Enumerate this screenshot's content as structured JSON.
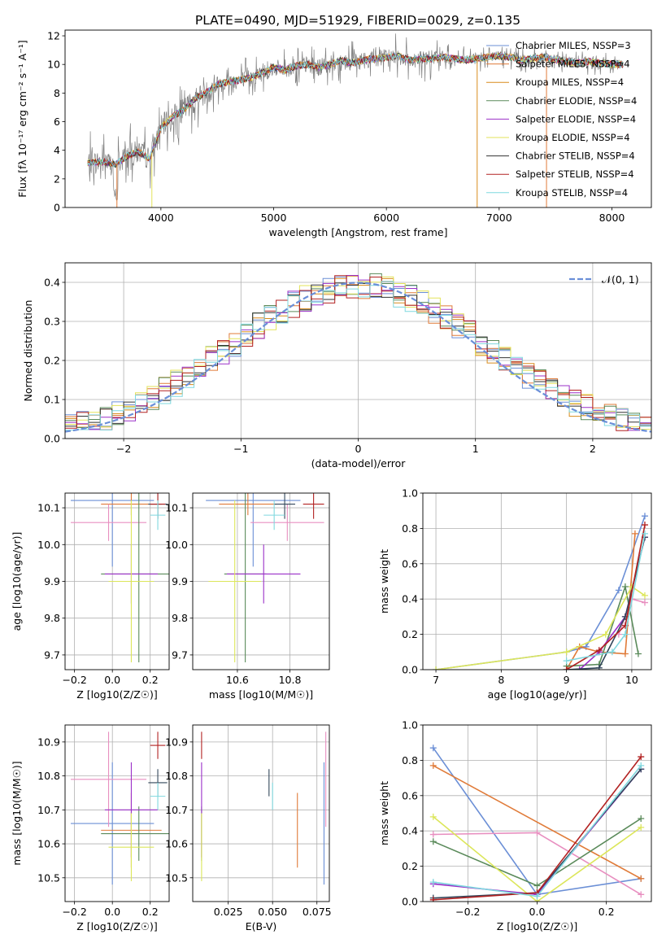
{
  "figure": {
    "title": "PLATE=0490, MJD=51929, FIBERID=0029, z=0.135"
  },
  "chart_data": [
    {
      "id": "spectrum",
      "type": "line",
      "xlabel": "wavelength [Angstrom, rest frame]",
      "ylabel": "Flux [fλ 10⁻¹⁷ erg cm⁻² s⁻¹ A⁻¹]",
      "xlim": [
        3150,
        8350
      ],
      "ylim": [
        0,
        12.4
      ],
      "xticks": [
        4000,
        5000,
        6000,
        7000,
        8000
      ],
      "yticks": [
        0,
        2,
        4,
        6,
        8,
        10,
        12
      ],
      "grid": false,
      "legend_position": "top-right",
      "series": [
        {
          "name": "Chabrier MILES, NSSP=3",
          "color": "#6b8fd6"
        },
        {
          "name": "Salpeter MILES, NSSP=4",
          "color": "#e07b39"
        },
        {
          "name": "Kroupa MILES, NSSP=4",
          "color": "#d88c1d"
        },
        {
          "name": "Chabrier ELODIE, NSSP=4",
          "color": "#5a8a5a"
        },
        {
          "name": "Salpeter ELODIE, NSSP=4",
          "color": "#9b30c8"
        },
        {
          "name": "Kroupa ELODIE, NSSP=4",
          "color": "#e3e35a"
        },
        {
          "name": "Chabrier STELIB, NSSP=4",
          "color": "#333333"
        },
        {
          "name": "Salpeter STELIB, NSSP=4",
          "color": "#b22222"
        },
        {
          "name": "Kroupa STELIB, NSSP=4",
          "color": "#7fd8df"
        }
      ],
      "data_color": "#808080",
      "envelope": {
        "x": [
          3350,
          3500,
          3600,
          3700,
          3800,
          3900,
          4000,
          4100,
          4200,
          4300,
          4400,
          4500,
          4600,
          4700,
          4800,
          4900,
          5000,
          5100,
          5200,
          5300,
          5400,
          5500,
          5600,
          5700,
          5800,
          5900,
          6000,
          6100,
          6200,
          6300,
          6400,
          6500,
          6600,
          6700,
          6800,
          6900,
          7000,
          7100,
          7200,
          7300,
          7400,
          7500,
          7600,
          7700,
          7800,
          7900,
          8000,
          8100
        ],
        "y": [
          3.1,
          3.2,
          3.0,
          3.6,
          3.9,
          3.4,
          5.6,
          6.3,
          6.8,
          7.6,
          8.0,
          8.6,
          8.8,
          8.9,
          9.1,
          9.4,
          9.8,
          9.6,
          9.9,
          10.0,
          9.8,
          10.0,
          10.3,
          10.1,
          10.3,
          10.4,
          10.5,
          10.6,
          10.3,
          10.4,
          10.4,
          10.5,
          10.4,
          10.3,
          10.4,
          10.5,
          10.6,
          10.5,
          10.3,
          10.4,
          10.5,
          10.3,
          10.2,
          10.1,
          10.2,
          10.1,
          10.0,
          10.0
        ]
      }
    },
    {
      "id": "residuals",
      "type": "line",
      "xlabel": "(data-model)/error",
      "ylabel": "Normed distribution",
      "xlim": [
        -2.5,
        2.5
      ],
      "ylim": [
        0,
        0.45
      ],
      "xticks": [
        -2,
        -1,
        0,
        1,
        2
      ],
      "yticks": [
        0.0,
        0.1,
        0.2,
        0.3,
        0.4
      ],
      "grid": true,
      "legend_position": "top-right",
      "reference_label": "𝒩(0, 1)",
      "reference_color": "#6a8fd8",
      "bin_width": 0.1
    },
    {
      "id": "age-vs-Z",
      "type": "scatter",
      "xlabel": "Z [log10(Z/Z☉)]",
      "ylabel": "age  [log10(age/yr)]",
      "xlim": [
        -0.25,
        0.3
      ],
      "ylim": [
        9.66,
        10.14
      ],
      "xticks": [
        -0.2,
        0.0,
        0.2
      ],
      "yticks": [
        9.7,
        9.8,
        9.9,
        10.0,
        10.1
      ],
      "grid": true
    },
    {
      "id": "age-vs-mass",
      "type": "scatter",
      "xlabel": "mass [log10(M/M☉)]",
      "xlim": [
        10.43,
        10.95
      ],
      "ylim": [
        9.66,
        10.14
      ],
      "xticks": [
        10.6,
        10.8
      ],
      "yticks": [
        9.7,
        9.8,
        9.9,
        10.0,
        10.1
      ],
      "grid": true
    },
    {
      "id": "weight-vs-age",
      "type": "line",
      "xlabel": "age  [log10(age/yr)]",
      "ylabel": "mass weight",
      "xlim": [
        6.8,
        10.3
      ],
      "ylim": [
        0,
        1.0
      ],
      "xticks": [
        7,
        8,
        9,
        10
      ],
      "yticks": [
        0.0,
        0.2,
        0.4,
        0.6,
        0.8,
        1.0
      ],
      "grid": true
    },
    {
      "id": "mass-vs-Z",
      "type": "scatter",
      "xlabel": "Z [log10(Z/Z☉)]",
      "ylabel": "mass [log10(M/M☉)]",
      "xlim": [
        -0.25,
        0.3
      ],
      "ylim": [
        10.43,
        10.95
      ],
      "xticks": [
        -0.2,
        0.0,
        0.2
      ],
      "yticks": [
        10.5,
        10.6,
        10.7,
        10.8,
        10.9
      ],
      "grid": true
    },
    {
      "id": "mass-vs-ebv",
      "type": "scatter",
      "xlabel": "E(B-V)",
      "xlim": [
        0.005,
        0.082
      ],
      "ylim": [
        10.43,
        10.95
      ],
      "xticks": [
        0.025,
        0.05,
        0.075
      ],
      "yticks": [
        10.5,
        10.6,
        10.7,
        10.8,
        10.9
      ],
      "grid": true
    },
    {
      "id": "weight-vs-Z",
      "type": "line",
      "xlabel": "Z [log10(Z/Z☉)]",
      "ylabel": "mass weight",
      "xlim": [
        -0.33,
        0.33
      ],
      "ylim": [
        0,
        1.0
      ],
      "xticks": [
        -0.2,
        0.0,
        0.2
      ],
      "yticks": [
        0.0,
        0.2,
        0.4,
        0.6,
        0.8,
        1.0
      ],
      "grid": true
    }
  ],
  "fits": [
    {
      "color": "#6b8fd6",
      "Z": 0.0,
      "Zerr": 0.22,
      "age": 10.12,
      "ageErr": 0.18,
      "mass": 10.66,
      "massErr": 0.18,
      "ebv": 0.079,
      "ageW": [
        [
          7.0,
          0.0
        ],
        [
          9.0,
          0.1
        ],
        [
          9.3,
          0.13
        ],
        [
          9.8,
          0.45
        ],
        [
          10.2,
          0.87
        ]
      ],
      "zW": [
        [
          -0.3,
          0.87
        ],
        [
          0.0,
          0.04
        ],
        [
          0.3,
          0.13
        ]
      ]
    },
    {
      "color": "#e07b39",
      "Z": 0.1,
      "Zerr": 0.16,
      "age": 10.11,
      "ageErr": 0.03,
      "mass": 10.64,
      "massErr": 0.11,
      "ebv": 0.064,
      "ageW": [
        [
          9.0,
          0.0
        ],
        [
          9.2,
          0.13
        ],
        [
          9.5,
          0.1
        ],
        [
          9.9,
          0.09
        ],
        [
          10.05,
          0.77
        ]
      ],
      "zW": [
        [
          -0.3,
          0.77
        ],
        [
          0.3,
          0.13
        ]
      ]
    },
    {
      "color": "#e88fc0",
      "Z": -0.02,
      "Zerr": 0.2,
      "age": 10.06,
      "ageErr": 0.05,
      "mass": 10.79,
      "massErr": 0.14,
      "ebv": 0.08,
      "ageW": [
        [
          9.8,
          0.2
        ],
        [
          10.0,
          0.4
        ],
        [
          10.2,
          0.38
        ]
      ],
      "zW": [
        [
          -0.3,
          0.38
        ],
        [
          0.0,
          0.39
        ],
        [
          0.3,
          0.04
        ]
      ]
    },
    {
      "color": "#5a8a5a",
      "Z": 0.14,
      "Zerr": 0.2,
      "age": 9.92,
      "ageErr": 0.24,
      "mass": 10.63,
      "massErr": 0.08,
      "ebv": 0.01,
      "ageW": [
        [
          9.0,
          0.02
        ],
        [
          9.5,
          0.03
        ],
        [
          9.9,
          0.47
        ],
        [
          10.1,
          0.09
        ]
      ],
      "zW": [
        [
          -0.3,
          0.34
        ],
        [
          0.0,
          0.09
        ],
        [
          0.3,
          0.47
        ]
      ]
    },
    {
      "color": "#9b30c8",
      "Z": 0.1,
      "Zerr": 0.14,
      "age": 9.92,
      "ageErr": 0.08,
      "mass": 10.7,
      "massErr": 0.14,
      "ebv": 0.01,
      "ageW": [
        [
          9.2,
          0.0
        ],
        [
          9.5,
          0.1
        ],
        [
          9.9,
          0.3
        ],
        [
          10.2,
          0.75
        ]
      ],
      "zW": [
        [
          -0.3,
          0.1
        ],
        [
          0.0,
          0.04
        ],
        [
          0.3,
          0.75
        ]
      ]
    },
    {
      "color": "#dce65a",
      "Z": 0.1,
      "Zerr": 0.12,
      "age": 9.9,
      "ageErr": 0.22,
      "mass": 10.59,
      "massErr": 0.1,
      "ebv": 0.01,
      "ageW": [
        [
          7.0,
          0.0
        ],
        [
          9.0,
          0.1
        ],
        [
          9.6,
          0.2
        ],
        [
          10.0,
          0.47
        ],
        [
          10.2,
          0.42
        ]
      ],
      "zW": [
        [
          -0.3,
          0.48
        ],
        [
          0.0,
          0.0
        ],
        [
          0.3,
          0.42
        ]
      ]
    },
    {
      "color": "#33475b",
      "Z": 0.24,
      "Zerr": 0.05,
      "age": 10.11,
      "ageErr": 0.04,
      "mass": 10.78,
      "massErr": 0.04,
      "ebv": 0.048,
      "ageW": [
        [
          9.0,
          0.0
        ],
        [
          9.5,
          0.01
        ],
        [
          9.9,
          0.3
        ],
        [
          10.2,
          0.75
        ]
      ],
      "zW": [
        [
          -0.3,
          0.02
        ],
        [
          0.0,
          0.05
        ],
        [
          0.3,
          0.75
        ]
      ]
    },
    {
      "color": "#b22222",
      "Z": 0.24,
      "Zerr": 0.04,
      "age": 10.11,
      "ageErr": 0.04,
      "mass": 10.89,
      "massErr": 0.04,
      "ebv": 0.01,
      "ageW": [
        [
          9.0,
          0.0
        ],
        [
          9.5,
          0.11
        ],
        [
          9.9,
          0.25
        ],
        [
          10.2,
          0.82
        ]
      ],
      "zW": [
        [
          -0.3,
          0.01
        ],
        [
          0.0,
          0.05
        ],
        [
          0.3,
          0.82
        ]
      ]
    },
    {
      "color": "#7fd8df",
      "Z": 0.24,
      "Zerr": 0.04,
      "age": 10.08,
      "ageErr": 0.04,
      "mass": 10.74,
      "massErr": 0.04,
      "ebv": 0.05,
      "ageW": [
        [
          9.0,
          0.05
        ],
        [
          9.7,
          0.1
        ],
        [
          9.9,
          0.2
        ],
        [
          10.2,
          0.77
        ]
      ],
      "zW": [
        [
          -0.3,
          0.11
        ],
        [
          0.0,
          0.03
        ],
        [
          0.3,
          0.77
        ]
      ]
    }
  ]
}
